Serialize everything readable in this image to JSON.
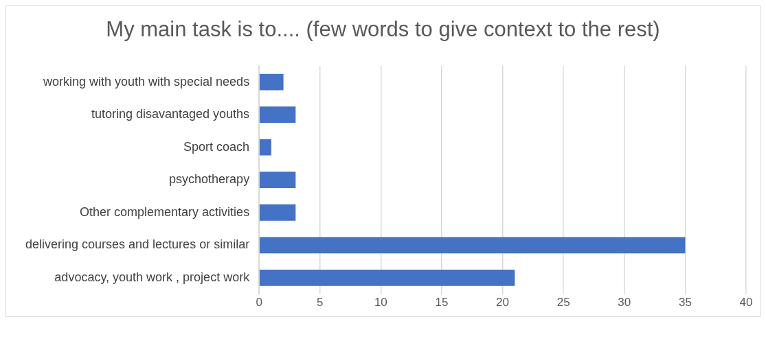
{
  "chart_data": {
    "type": "bar",
    "orientation": "horizontal",
    "title": "My main task is to.... (few words to give context to the rest)",
    "categories": [
      "working with youth with special needs",
      "tutoring disavantaged youths",
      "Sport coach",
      "psychotherapy",
      "Other complementary activities",
      "delivering courses and lectures or similar",
      "advocacy, youth work , project work"
    ],
    "values": [
      2,
      3,
      1,
      3,
      3,
      35,
      21
    ],
    "color": "#4472c4",
    "xlim": [
      0,
      40
    ],
    "xticks": [
      0,
      5,
      10,
      15,
      20,
      25,
      30,
      35,
      40
    ],
    "grid": "x"
  }
}
